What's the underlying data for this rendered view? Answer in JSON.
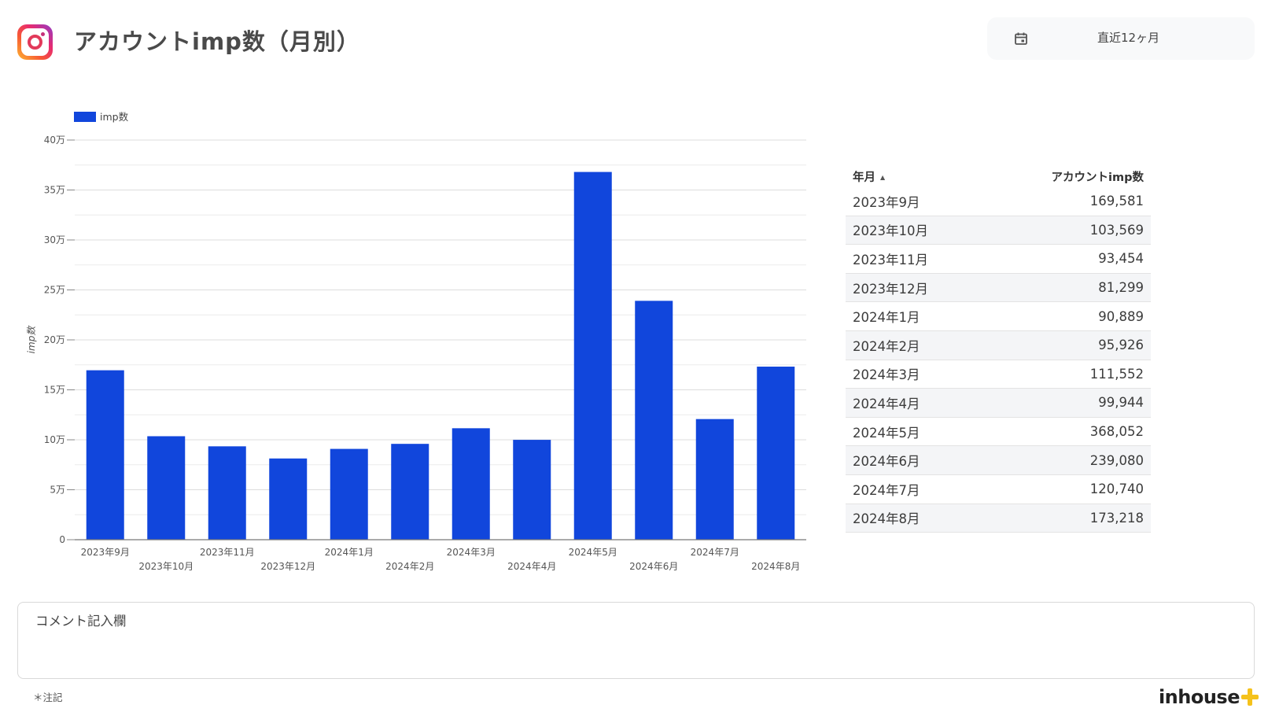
{
  "header": {
    "title": "アカウントimp数（月別）",
    "logo_icon": "instagram-logo",
    "date_range": {
      "icon": "calendar-icon",
      "label": "直近12ヶ月"
    }
  },
  "chart_data": {
    "type": "bar",
    "legend": {
      "label": "imp数",
      "placement": "top-left"
    },
    "ylabel": "imp数",
    "xlabel": "",
    "ylim": [
      0,
      400000
    ],
    "yticks": [
      "0",
      "5万",
      "10万",
      "15万",
      "20万",
      "25万",
      "30万",
      "35万",
      "40万"
    ],
    "ytick_values": [
      0,
      50000,
      100000,
      150000,
      200000,
      250000,
      300000,
      350000,
      400000
    ],
    "color": "#1146dc",
    "categories": [
      "2023年9月",
      "2023年10月",
      "2023年11月",
      "2023年12月",
      "2024年1月",
      "2024年2月",
      "2024年3月",
      "2024年4月",
      "2024年5月",
      "2024年6月",
      "2024年7月",
      "2024年8月"
    ],
    "values": [
      169581,
      103569,
      93454,
      81299,
      90889,
      95926,
      111552,
      99944,
      368052,
      239080,
      120740,
      173218
    ],
    "grid": true
  },
  "table": {
    "columns": [
      "年月",
      "アカウントimp数"
    ],
    "sort_indicator": "▲",
    "rows": [
      [
        "2023年9月",
        "169,581"
      ],
      [
        "2023年10月",
        "103,569"
      ],
      [
        "2023年11月",
        "93,454"
      ],
      [
        "2023年12月",
        "81,299"
      ],
      [
        "2024年1月",
        "90,889"
      ],
      [
        "2024年2月",
        "95,926"
      ],
      [
        "2024年3月",
        "111,552"
      ],
      [
        "2024年4月",
        "99,944"
      ],
      [
        "2024年5月",
        "368,052"
      ],
      [
        "2024年6月",
        "239,080"
      ],
      [
        "2024年7月",
        "120,740"
      ],
      [
        "2024年8月",
        "173,218"
      ]
    ]
  },
  "comment": {
    "title": "コメント記入欄"
  },
  "footnote": "＊注記",
  "brand": {
    "name": "inhouse",
    "accent": "#f5c21b"
  }
}
